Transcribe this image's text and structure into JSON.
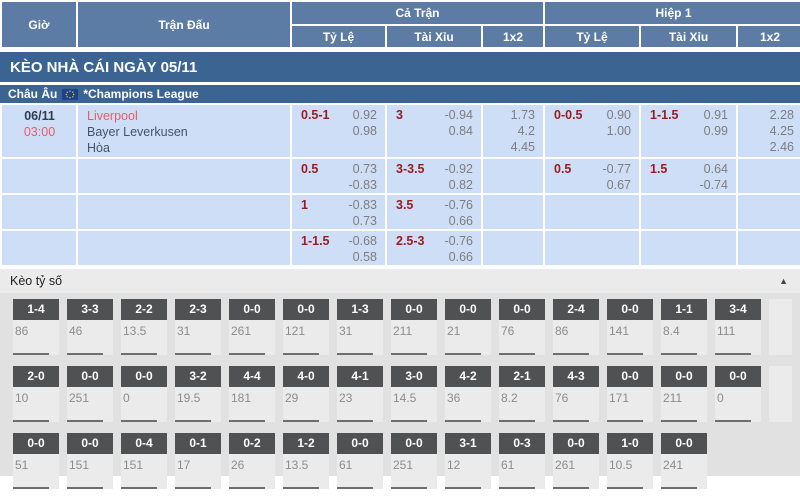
{
  "header": {
    "time": "Giờ",
    "match": "Trận Đấu",
    "full_match": "Cả Trận",
    "first_half": "Hiệp 1",
    "handicap": "Tỷ Lệ",
    "over_under": "Tài Xỉu",
    "one_x_two": "1x2"
  },
  "banner": {
    "title": "KÈO NHÀ CÁI NGÀY 05/11"
  },
  "league": {
    "region": "Châu Âu",
    "name": "*Champions League",
    "flag": "eu-flag"
  },
  "match": {
    "date": "06/11",
    "time": "03:00",
    "home": "Liverpool",
    "away": "Bayer Leverkusen",
    "draw": "Hòa"
  },
  "odds_rows": [
    {
      "ct_hdp": {
        "line": "0.5-1",
        "odds": [
          "0.92",
          "0.98"
        ]
      },
      "ct_ou": {
        "line": "3",
        "odds": [
          "-0.94",
          "0.84"
        ]
      },
      "ct_1x2": {
        "odds": [
          "1.73",
          "4.2",
          "4.45"
        ]
      },
      "h1_hdp": {
        "line": "0-0.5",
        "odds": [
          "0.90",
          "1.00"
        ]
      },
      "h1_ou": {
        "line": "1-1.5",
        "odds": [
          "0.91",
          "0.99"
        ]
      },
      "h1_1x2": {
        "odds": [
          "2.28",
          "4.25",
          "2.46"
        ]
      }
    },
    {
      "ct_hdp": {
        "line": "0.5",
        "odds": [
          "0.73",
          "-0.83"
        ]
      },
      "ct_ou": {
        "line": "3-3.5",
        "odds": [
          "-0.92",
          "0.82"
        ]
      },
      "ct_1x2": null,
      "h1_hdp": {
        "line": "0.5",
        "odds": [
          "-0.77",
          "0.67"
        ]
      },
      "h1_ou": {
        "line": "1.5",
        "odds": [
          "0.64",
          "-0.74"
        ]
      },
      "h1_1x2": null
    },
    {
      "ct_hdp": {
        "line": "1",
        "odds": [
          "-0.83",
          "0.73"
        ]
      },
      "ct_ou": {
        "line": "3.5",
        "odds": [
          "-0.76",
          "0.66"
        ]
      },
      "ct_1x2": null,
      "h1_hdp": null,
      "h1_ou": null,
      "h1_1x2": null
    },
    {
      "ct_hdp": {
        "line": "1-1.5",
        "odds": [
          "-0.68",
          "0.58"
        ]
      },
      "ct_ou": {
        "line": "2.5-3",
        "odds": [
          "-0.76",
          "0.66"
        ]
      },
      "ct_1x2": null,
      "h1_hdp": null,
      "h1_ou": null,
      "h1_1x2": null
    }
  ],
  "score_section": {
    "title": "Kèo tỷ số",
    "collapse_icon": "▲",
    "rows": [
      {
        "cells": [
          {
            "s": "1-4",
            "v": "86"
          },
          {
            "s": "3-3",
            "v": "46"
          },
          {
            "s": "2-2",
            "v": "13.5"
          },
          {
            "s": "2-3",
            "v": "31"
          },
          {
            "s": "0-0",
            "v": "261"
          },
          {
            "s": "0-0",
            "v": "121"
          },
          {
            "s": "1-3",
            "v": "31"
          },
          {
            "s": "0-0",
            "v": "211"
          },
          {
            "s": "0-0",
            "v": "21"
          },
          {
            "s": "0-0",
            "v": "76"
          },
          {
            "s": "2-4",
            "v": "86"
          },
          {
            "s": "0-0",
            "v": "141"
          },
          {
            "s": "1-1",
            "v": "8.4"
          },
          {
            "s": "3-4",
            "v": "111"
          }
        ],
        "trailing_empty": 1
      },
      {
        "cells": [
          {
            "s": "2-0",
            "v": "10"
          },
          {
            "s": "0-0",
            "v": "251"
          },
          {
            "s": "0-0",
            "v": "0"
          },
          {
            "s": "3-2",
            "v": "19.5"
          },
          {
            "s": "4-4",
            "v": "181"
          },
          {
            "s": "4-0",
            "v": "29"
          },
          {
            "s": "4-1",
            "v": "23"
          },
          {
            "s": "3-0",
            "v": "14.5"
          },
          {
            "s": "4-2",
            "v": "36"
          },
          {
            "s": "2-1",
            "v": "8.2"
          },
          {
            "s": "4-3",
            "v": "76"
          },
          {
            "s": "0-0",
            "v": "171"
          },
          {
            "s": "0-0",
            "v": "211"
          },
          {
            "s": "0-0",
            "v": "0"
          }
        ],
        "trailing_empty": 1
      },
      {
        "cells": [
          {
            "s": "0-0",
            "v": "51"
          },
          {
            "s": "0-0",
            "v": "151"
          },
          {
            "s": "0-4",
            "v": "151"
          },
          {
            "s": "0-1",
            "v": "17"
          },
          {
            "s": "0-2",
            "v": "26"
          },
          {
            "s": "1-2",
            "v": "13.5"
          },
          {
            "s": "0-0",
            "v": "61"
          },
          {
            "s": "0-0",
            "v": "251"
          },
          {
            "s": "3-1",
            "v": "12"
          },
          {
            "s": "0-3",
            "v": "61"
          },
          {
            "s": "0-0",
            "v": "261"
          },
          {
            "s": "1-0",
            "v": "10.5"
          },
          {
            "s": "0-0",
            "v": "241"
          }
        ],
        "trailing_empty": 0
      }
    ]
  },
  "colors": {
    "header_blue": "#5c7ca5",
    "banner_blue": "#3c6492",
    "row_blue": "#cfdef7",
    "line_maroon": "#9a1b1f",
    "odds_gray": "#7d7d7d",
    "accent_red": "#ea5c63",
    "team_dark": "#435369",
    "score_box_dark": "#4f5152"
  }
}
